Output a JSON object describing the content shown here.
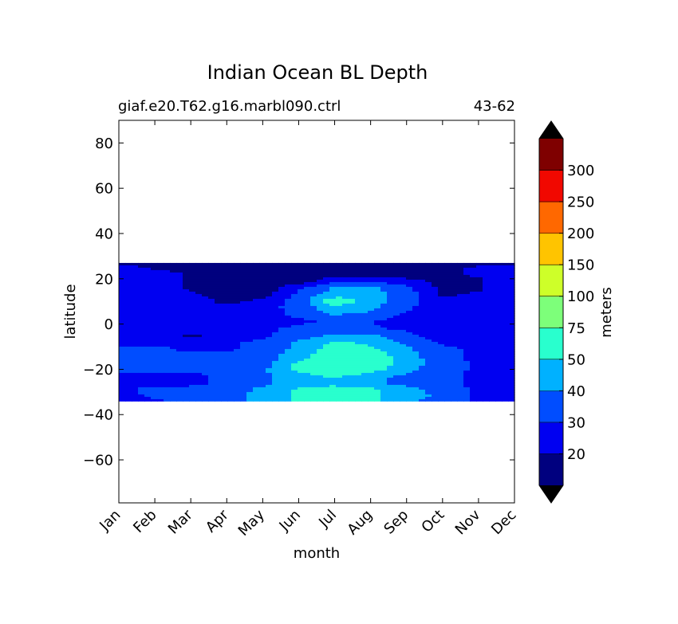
{
  "chart_data": {
    "type": "heatmap",
    "title": "Indian Ocean BL Depth",
    "subtitle_left": "giaf.e20.T62.g16.marbl090.ctrl",
    "subtitle_right": "43-62",
    "xlabel": "month",
    "ylabel": "latitude",
    "x_ticks": [
      "Jan",
      "Feb",
      "Mar",
      "Apr",
      "May",
      "Jun",
      "Jul",
      "Aug",
      "Sep",
      "Oct",
      "Nov",
      "Dec"
    ],
    "xlim": [
      0,
      11
    ],
    "y_ticks": [
      80,
      60,
      40,
      20,
      0,
      -20,
      -40,
      -60
    ],
    "ylim": [
      -79,
      90
    ],
    "data_extent": {
      "lat_min": -34,
      "lat_max": 27
    },
    "grid": false,
    "colorbar": {
      "label": "meters",
      "levels": [
        10,
        20,
        30,
        40,
        50,
        75,
        100,
        150,
        200,
        250,
        300,
        350
      ],
      "tick_labels": [
        "20",
        "30",
        "40",
        "50",
        "75",
        "100",
        "150",
        "200",
        "250",
        "300"
      ],
      "colors": [
        "#00007f",
        "#0000f1",
        "#004dff",
        "#00b1ff",
        "#29ffce",
        "#7dff7a",
        "#ceff29",
        "#ffc400",
        "#ff6800",
        "#f10800",
        "#7f0000"
      ],
      "under_color": "#000000",
      "over_color": "#000000",
      "extend": "both"
    },
    "lat_grid": [
      27,
      25,
      22,
      19,
      16,
      13,
      10,
      7,
      4,
      1,
      -2,
      -5,
      -8,
      -11,
      -14,
      -17,
      -20,
      -23,
      -26,
      -29,
      -32,
      -34
    ],
    "values": [
      [
        13,
        13,
        13,
        13,
        13,
        13,
        13,
        13,
        13,
        13,
        13,
        13
      ],
      [
        25,
        18,
        18,
        15,
        15,
        15,
        15,
        15,
        15,
        18,
        22,
        25
      ],
      [
        25,
        25,
        18,
        14,
        14,
        14,
        14,
        14,
        14,
        16,
        22,
        28
      ],
      [
        28,
        28,
        18,
        14,
        14,
        14,
        28,
        28,
        24,
        16,
        18,
        28
      ],
      [
        28,
        28,
        18,
        14,
        14,
        28,
        42,
        42,
        32,
        18,
        18,
        28
      ],
      [
        28,
        28,
        22,
        16,
        16,
        32,
        45,
        45,
        35,
        18,
        22,
        28
      ],
      [
        28,
        28,
        24,
        18,
        22,
        35,
        58,
        45,
        35,
        22,
        24,
        28
      ],
      [
        28,
        28,
        24,
        22,
        25,
        35,
        45,
        42,
        32,
        22,
        24,
        28
      ],
      [
        28,
        28,
        24,
        22,
        25,
        32,
        40,
        38,
        28,
        24,
        24,
        28
      ],
      [
        28,
        28,
        25,
        24,
        26,
        28,
        32,
        30,
        26,
        24,
        24,
        28
      ],
      [
        28,
        28,
        25,
        24,
        28,
        32,
        35,
        32,
        28,
        24,
        24,
        28
      ],
      [
        28,
        28,
        18,
        24,
        28,
        35,
        42,
        42,
        32,
        25,
        24,
        28
      ],
      [
        28,
        28,
        28,
        28,
        32,
        42,
        52,
        48,
        38,
        28,
        28,
        28
      ],
      [
        32,
        32,
        28,
        28,
        35,
        42,
        55,
        52,
        42,
        32,
        28,
        28
      ],
      [
        32,
        32,
        32,
        32,
        35,
        45,
        58,
        56,
        45,
        32,
        28,
        28
      ],
      [
        32,
        32,
        32,
        32,
        35,
        52,
        60,
        58,
        45,
        35,
        28,
        28
      ],
      [
        32,
        32,
        32,
        32,
        38,
        55,
        62,
        55,
        42,
        35,
        28,
        28
      ],
      [
        28,
        28,
        28,
        32,
        38,
        45,
        52,
        45,
        38,
        32,
        28,
        28
      ],
      [
        28,
        28,
        28,
        32,
        38,
        45,
        45,
        42,
        35,
        32,
        28,
        28
      ],
      [
        28,
        32,
        32,
        35,
        42,
        52,
        56,
        52,
        45,
        35,
        28,
        28
      ],
      [
        26,
        32,
        35,
        38,
        42,
        52,
        58,
        52,
        45,
        38,
        28,
        28
      ],
      [
        22,
        28,
        35,
        38,
        42,
        52,
        60,
        52,
        42,
        35,
        28,
        28
      ]
    ]
  }
}
